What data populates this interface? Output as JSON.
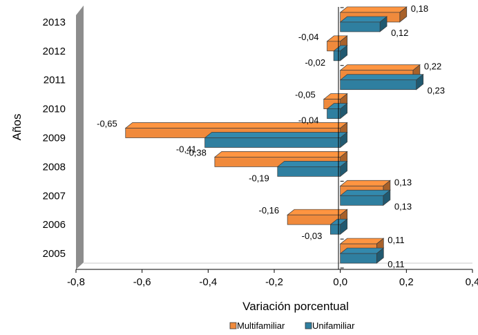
{
  "chart_data": {
    "type": "bar",
    "orientation": "horizontal",
    "style": "3d",
    "categories": [
      "2005",
      "2006",
      "2007",
      "2008",
      "2009",
      "2010",
      "2011",
      "2012",
      "2013"
    ],
    "series": [
      {
        "name": "Multifamiliar",
        "color": "#f08a3c",
        "values": [
          0.11,
          -0.16,
          0.13,
          -0.38,
          -0.65,
          -0.05,
          0.22,
          -0.04,
          0.18
        ],
        "labels": [
          "0,11",
          "-0,16",
          "0,13",
          "-0,38",
          "-0,65",
          "-0,05",
          "0,22",
          "-0,04",
          "0,18"
        ]
      },
      {
        "name": "Unifamiliar",
        "color": "#2f7fa0",
        "values": [
          0.11,
          -0.03,
          0.13,
          -0.19,
          -0.41,
          -0.04,
          0.23,
          -0.02,
          0.12
        ],
        "labels": [
          "0,11",
          "-0,03",
          "0,13",
          "-0,19",
          "-0,41",
          "-0,04",
          "0,23",
          "-0,02",
          "0,12"
        ]
      }
    ],
    "xlabel": "Variación porcentual",
    "ylabel": "Años",
    "xlim": [
      -0.8,
      0.4
    ],
    "xticks": [
      -0.8,
      -0.6,
      -0.4,
      -0.2,
      0.0,
      0.2,
      0.4
    ],
    "xtick_labels": [
      "-0,8",
      "-0,6",
      "-0,4",
      "-0,2",
      "0,0",
      "0,2",
      "0,4"
    ],
    "grid": false,
    "legend_position": "bottom"
  }
}
